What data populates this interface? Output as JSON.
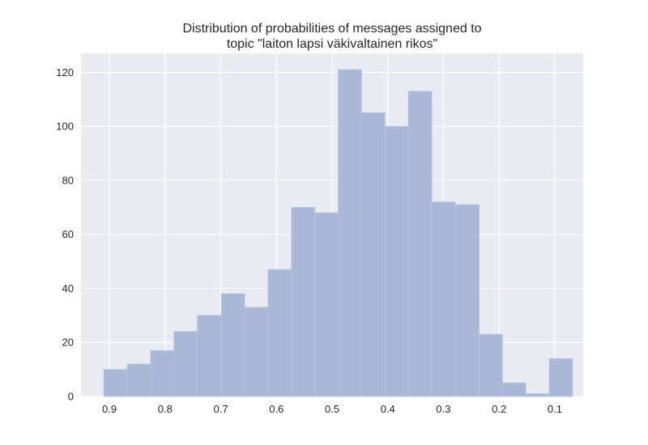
{
  "chart_data": {
    "type": "bar",
    "title_lines": [
      "Distribution of probabilities of messages assigned to",
      "topic \"laiton lapsi väkivaltainen rikos\""
    ],
    "xlabel": "",
    "ylabel": "",
    "x_inverted": true,
    "xlim": [
      0.951,
      0.049
    ],
    "ylim": [
      0,
      127
    ],
    "xticks": [
      0.9,
      0.8,
      0.7,
      0.6,
      0.5,
      0.4,
      0.3,
      0.2,
      0.1
    ],
    "xtick_labels": [
      "0.9",
      "0.8",
      "0.7",
      "0.6",
      "0.5",
      "0.4",
      "0.3",
      "0.2",
      "0.1"
    ],
    "yticks": [
      0,
      20,
      40,
      60,
      80,
      100,
      120
    ],
    "ytick_labels": [
      "0",
      "20",
      "40",
      "60",
      "80",
      "100",
      "120"
    ],
    "bin_edges": [
      0.91,
      0.868,
      0.826,
      0.784,
      0.742,
      0.699,
      0.657,
      0.615,
      0.573,
      0.531,
      0.489,
      0.447,
      0.405,
      0.363,
      0.321,
      0.279,
      0.236,
      0.194,
      0.152,
      0.11,
      0.068
    ],
    "counts": [
      10,
      12,
      17,
      24,
      30,
      38,
      33,
      47,
      70,
      68,
      121,
      105,
      100,
      113,
      72,
      71,
      23,
      5,
      1,
      14
    ],
    "grid": true,
    "colors": {
      "bar": "#a9b8d6",
      "bar_edge": "#b7c4de",
      "plot_bg": "#eaeaf2",
      "grid": "#ffffff",
      "text": "#262626"
    }
  }
}
